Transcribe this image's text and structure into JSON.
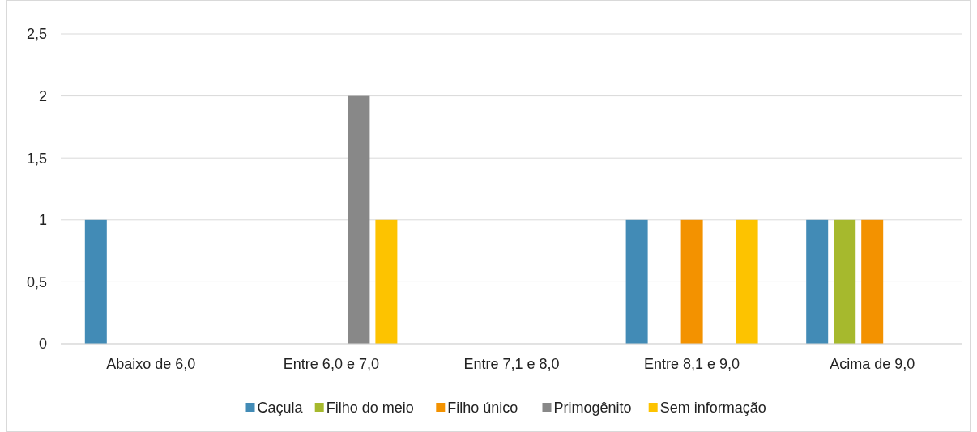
{
  "chart_data": {
    "type": "bar",
    "categories": [
      "Abaixo de 6,0",
      "Entre 6,0 e 7,0",
      "Entre 7,1 e 8,0",
      "Entre 8,1 e 9,0",
      "Acima de 9,0"
    ],
    "series": [
      {
        "name": "Caçula",
        "color": "#428bb6",
        "values": [
          1,
          null,
          null,
          1,
          1
        ]
      },
      {
        "name": "Filho do meio",
        "color": "#a6b92d",
        "values": [
          null,
          null,
          null,
          null,
          1
        ]
      },
      {
        "name": "Filho único",
        "color": "#f39200",
        "values": [
          null,
          null,
          null,
          1,
          1
        ]
      },
      {
        "name": "Primogênito",
        "color": "#888888",
        "values": [
          null,
          2,
          null,
          null,
          null
        ]
      },
      {
        "name": "Sem informação",
        "color": "#fdc300",
        "values": [
          null,
          1,
          null,
          1,
          null
        ]
      }
    ],
    "ylim": [
      0,
      2.5
    ],
    "yticks": [
      0,
      {
        "value": 0.5,
        "label": "0,5"
      },
      1,
      {
        "value": 1.5,
        "label": "1,5"
      },
      2,
      {
        "value": 2.5,
        "label": "2,5"
      }
    ],
    "grid": "y",
    "legend": "bottom"
  }
}
